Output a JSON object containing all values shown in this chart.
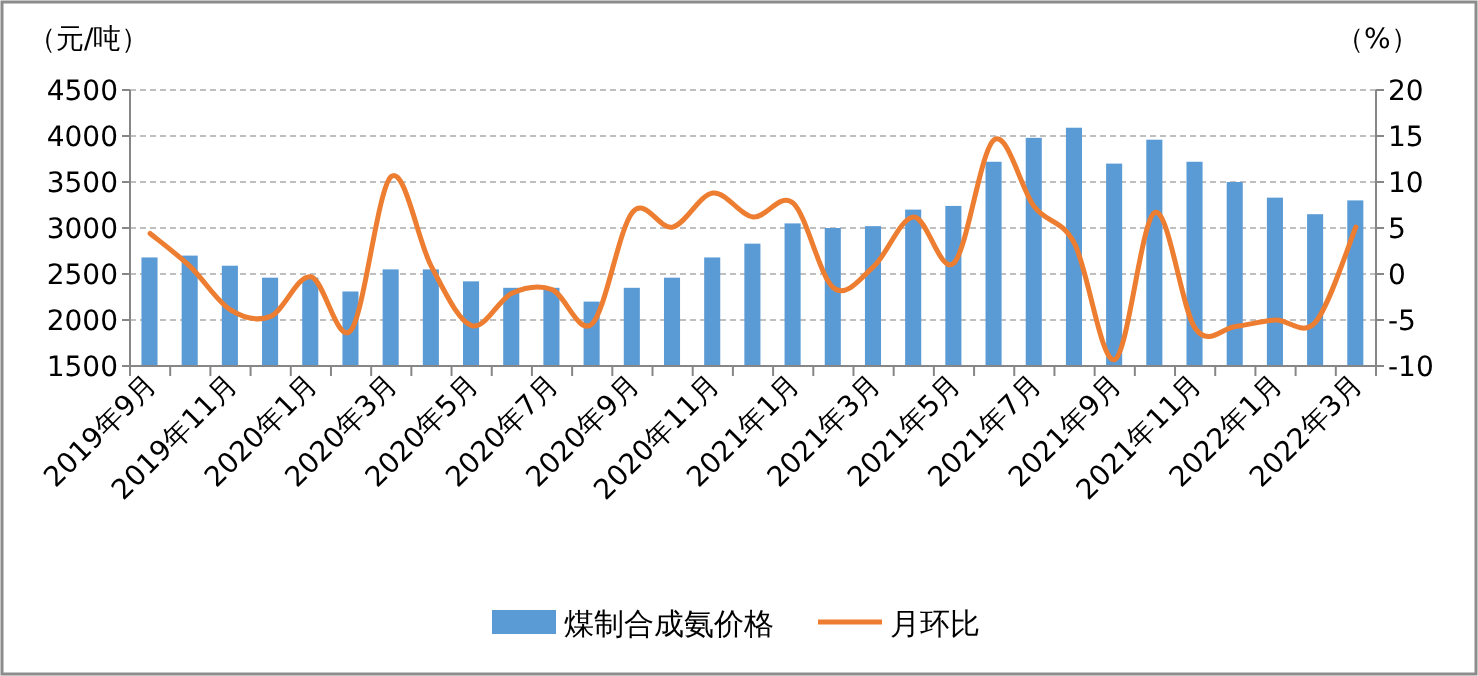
{
  "chart_data": {
    "type": "bar",
    "ylabel": "（元/吨）",
    "y2label": "（%）",
    "categories": [
      "2019年9月",
      null,
      "2019年11月",
      null,
      "2020年1月",
      null,
      "2020年3月",
      null,
      "2020年5月",
      null,
      "2020年7月",
      null,
      "2020年9月",
      null,
      "2020年11月",
      null,
      "2021年1月",
      null,
      "2021年3月",
      null,
      "2021年5月",
      null,
      "2021年7月",
      null,
      "2021年9月",
      null,
      "2021年11月",
      null,
      "2022年1月",
      null,
      "2022年3月"
    ],
    "series": [
      {
        "name": "煤制合成氨价格",
        "color": "#5b9bd5",
        "values": [
          2680,
          2700,
          2590,
          2460,
          2460,
          2310,
          2550,
          2550,
          2420,
          2350,
          2350,
          2200,
          2350,
          2460,
          2680,
          2830,
          3050,
          3000,
          3020,
          3200,
          3240,
          3720,
          3980,
          4090,
          3700,
          3960,
          3720,
          3500,
          3330,
          3150,
          3300
        ]
      },
      {
        "name": "月环比",
        "type": "line",
        "axis": "y2",
        "color": "#ed7d31",
        "values": [
          4.4,
          0.8,
          -3.9,
          -4.6,
          -0.3,
          -6.1,
          10.6,
          0.8,
          -5.6,
          -2.1,
          -1.7,
          -5.4,
          6.7,
          5.1,
          8.8,
          6.2,
          7.7,
          -1.5,
          0.8,
          6.2,
          1.2,
          14.6,
          7.3,
          3.3,
          -9.3,
          6.7,
          -5.9,
          -5.7,
          -5.0,
          -5.2,
          5.1
        ]
      }
    ],
    "ylim": [
      1500,
      4500
    ],
    "yticks": [
      1500,
      2000,
      2500,
      3000,
      3500,
      4000,
      4500
    ],
    "y2lim": [
      -10,
      20
    ],
    "y2ticks": [
      -10,
      -5,
      0,
      5,
      10,
      15,
      20
    ],
    "grid": "y",
    "legend": "bottom",
    "marker": "none",
    "line_style": "solid"
  }
}
